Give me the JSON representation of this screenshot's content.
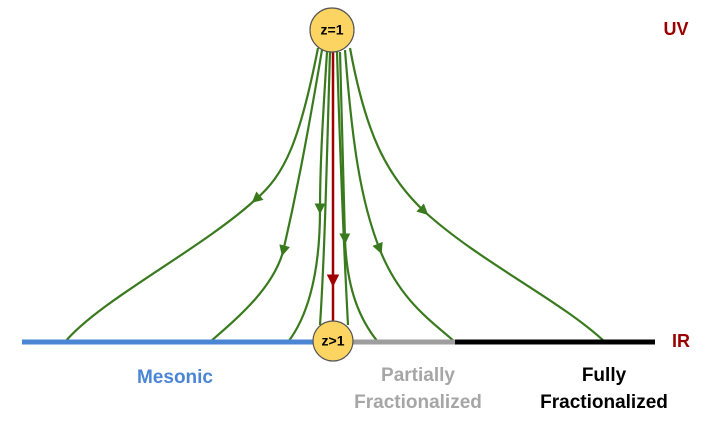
{
  "nodes": [
    {
      "label": "z=1"
    },
    {
      "label": "z>1"
    }
  ],
  "scale_labels": {
    "uv": "UV",
    "ir": "IR"
  },
  "phases": [
    {
      "lines": [
        "Mesonic"
      ]
    },
    {
      "lines": [
        "Partially",
        "Fractionalized"
      ]
    },
    {
      "lines": [
        "Fully",
        "Fractionalized"
      ]
    }
  ]
}
